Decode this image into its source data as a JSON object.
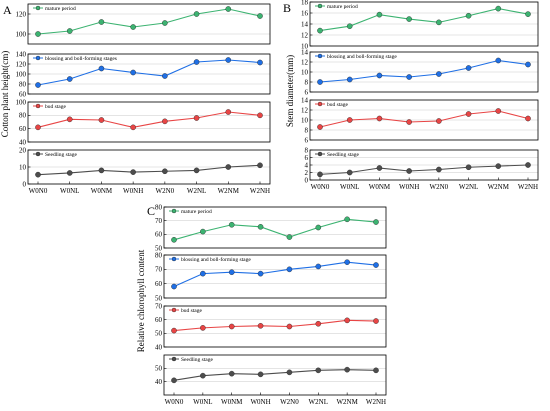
{
  "chart_data": [
    {
      "panel": "A",
      "type": "line",
      "ylabel": "Cotton plant height(cm)",
      "categories": [
        "W0N0",
        "W0NL",
        "W0NM",
        "W0NH",
        "W2N0",
        "W2NL",
        "W2NM",
        "W2NH"
      ],
      "subplots": [
        {
          "name": "mature period",
          "color": "#3cb371",
          "ylim": [
            90,
            130
          ],
          "ticks": [
            100,
            120
          ],
          "values": [
            100,
            103,
            112,
            107,
            111,
            120,
            125,
            118
          ]
        },
        {
          "name": "blossing and boll-forming stages",
          "color": "#1f6fe5",
          "ylim": [
            60,
            140
          ],
          "ticks": [
            60,
            80,
            100,
            120,
            140
          ],
          "values": [
            78,
            90,
            111,
            103,
            96,
            124,
            128,
            123
          ]
        },
        {
          "name": "bud stage",
          "color": "#e84545",
          "ylim": [
            40,
            100
          ],
          "ticks": [
            40,
            60,
            80,
            100
          ],
          "values": [
            62,
            74,
            73,
            62,
            71,
            76,
            85,
            80
          ]
        },
        {
          "name": "Seedling stage",
          "color": "#4d4d4d",
          "ylim": [
            0,
            20
          ],
          "ticks": [
            0,
            10,
            20
          ],
          "values": [
            5.5,
            6.5,
            8,
            7,
            7.5,
            8,
            10,
            11
          ]
        }
      ]
    },
    {
      "panel": "B",
      "type": "line",
      "ylabel": "Stem diameter(mm)",
      "categories": [
        "W0N0",
        "W0NL",
        "W0NM",
        "W0NH",
        "W2N0",
        "W2NL",
        "W2NM",
        "W2NH"
      ],
      "subplots": [
        {
          "name": "mature period",
          "color": "#3cb371",
          "ylim": [
            10,
            18
          ],
          "ticks": [
            10,
            12,
            14,
            16,
            18
          ],
          "values": [
            12.8,
            13.6,
            15.7,
            14.9,
            14.3,
            15.5,
            16.8,
            15.8
          ]
        },
        {
          "name": "blossing and boll-forming stage",
          "color": "#1f6fe5",
          "ylim": [
            6,
            14
          ],
          "ticks": [
            6,
            8,
            10,
            12,
            14
          ],
          "values": [
            8,
            8.5,
            9.3,
            9,
            9.6,
            10.8,
            12.3,
            11.5
          ]
        },
        {
          "name": "bud stage",
          "color": "#e84545",
          "ylim": [
            6,
            14
          ],
          "ticks": [
            6,
            8,
            10,
            12,
            14
          ],
          "values": [
            8.6,
            10,
            10.3,
            9.6,
            9.8,
            11.2,
            11.8,
            10.3
          ]
        },
        {
          "name": "Seedling stage",
          "color": "#4d4d4d",
          "ylim": [
            0,
            8
          ],
          "ticks": [
            0,
            2,
            4,
            6,
            8
          ],
          "values": [
            1.5,
            2,
            3.2,
            2.4,
            2.8,
            3.4,
            3.7,
            4
          ]
        }
      ]
    },
    {
      "panel": "C",
      "type": "line",
      "ylabel": "Relative chlorophyll content",
      "categories": [
        "W0N0",
        "W0NL",
        "W0NM",
        "W0NH",
        "W2N0",
        "W2NL",
        "W2NM",
        "W2NH"
      ],
      "subplots": [
        {
          "name": "mature period",
          "color": "#3cb371",
          "ylim": [
            50,
            80
          ],
          "ticks": [
            50,
            60,
            70,
            80
          ],
          "values": [
            56,
            62,
            67,
            65.5,
            58,
            65,
            71,
            69
          ]
        },
        {
          "name": "blossing and boll-forming stage",
          "color": "#1f6fe5",
          "ylim": [
            50,
            80
          ],
          "ticks": [
            50,
            60,
            70,
            80
          ],
          "values": [
            58,
            67,
            68,
            67,
            70,
            72,
            75,
            73
          ]
        },
        {
          "name": "bud stage",
          "color": "#e84545",
          "ylim": [
            40,
            70
          ],
          "ticks": [
            40,
            50,
            60,
            70
          ],
          "values": [
            52,
            54,
            55,
            55.5,
            55,
            57,
            59.5,
            59
          ]
        },
        {
          "name": "Seedling stage",
          "color": "#4d4d4d",
          "ylim": [
            30,
            60
          ],
          "ticks": [
            40,
            50
          ],
          "values": [
            41,
            44.5,
            46,
            45.5,
            47,
            48.5,
            49,
            48.5
          ]
        }
      ]
    }
  ]
}
